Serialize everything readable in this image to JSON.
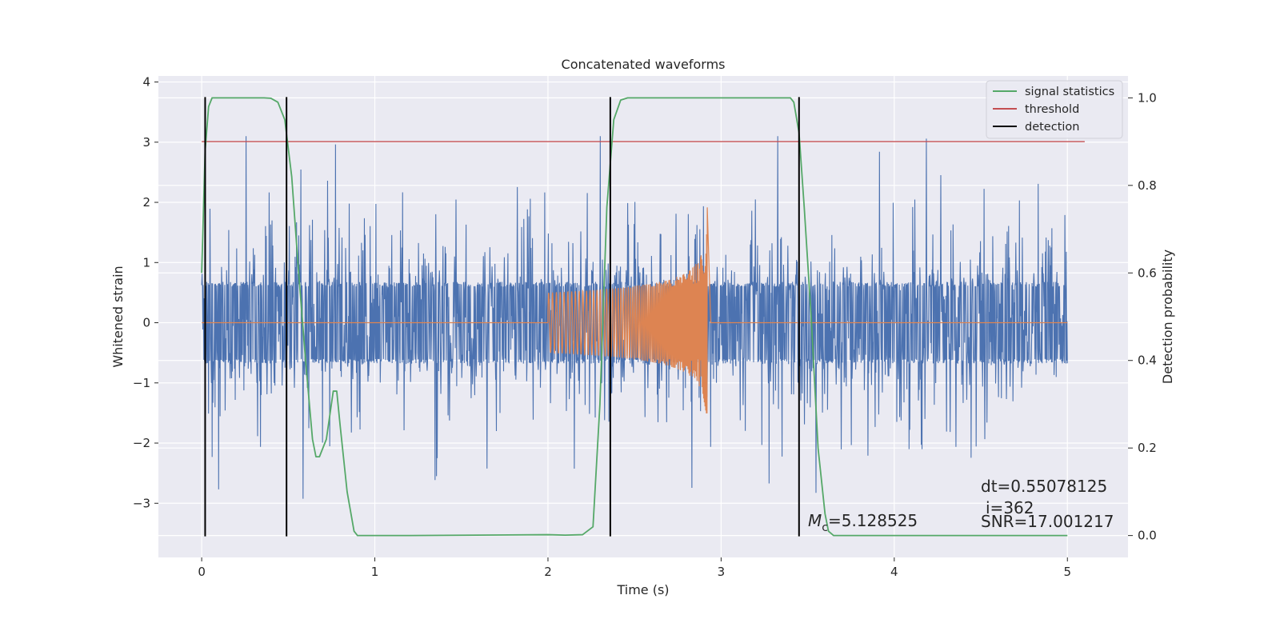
{
  "chart_data": {
    "type": "line",
    "title": "Concatenated waveforms",
    "xlabel": "Time (s)",
    "ylabel": "Whitened strain",
    "y2label": "Detection probability",
    "xlim": [
      -0.25,
      5.35
    ],
    "ylim": [
      -3.9,
      4.1
    ],
    "y2lim": [
      -0.05,
      1.05
    ],
    "xticks": [
      0,
      1,
      2,
      3,
      4,
      5
    ],
    "xtick_labels": [
      "0",
      "1",
      "2",
      "3",
      "4",
      "5"
    ],
    "yticks": [
      -3,
      -2,
      -1,
      0,
      1,
      2,
      3,
      4
    ],
    "ytick_labels": [
      "−3",
      "−2",
      "−1",
      "0",
      "1",
      "2",
      "3",
      "4"
    ],
    "y2ticks": [
      0.0,
      0.2,
      0.4,
      0.6,
      0.8,
      1.0
    ],
    "y2tick_labels": [
      "0.0",
      "0.2",
      "0.4",
      "0.6",
      "0.8",
      "1.0"
    ],
    "grid": true,
    "legend_position": "top-right",
    "colors": {
      "background": "#eaeaf2",
      "grid": "#ffffff",
      "noise": "#4c72b0",
      "template": "#dd8452",
      "signal_statistics": "#55a868",
      "threshold": "#c44e52",
      "detection": "#000000"
    },
    "series": [
      {
        "name": "signal statistics",
        "axis": "right",
        "x": [
          0.0,
          0.02,
          0.04,
          0.06,
          0.1,
          0.2,
          0.36,
          0.4,
          0.44,
          0.48,
          0.52,
          0.56,
          0.6,
          0.64,
          0.66,
          0.68,
          0.72,
          0.76,
          0.78,
          0.8,
          0.84,
          0.88,
          0.9,
          1.2,
          2.0,
          2.1,
          2.2,
          2.26,
          2.3,
          2.34,
          2.38,
          2.42,
          2.46,
          2.5,
          3.4,
          3.42,
          3.45,
          3.48,
          3.52,
          3.56,
          3.6,
          3.62,
          3.65,
          3.7,
          5.0
        ],
        "values": [
          0.6,
          0.88,
          0.98,
          1.0,
          1.0,
          1.0,
          1.0,
          0.999,
          0.99,
          0.95,
          0.82,
          0.6,
          0.4,
          0.22,
          0.18,
          0.18,
          0.22,
          0.33,
          0.33,
          0.25,
          0.1,
          0.01,
          0.0,
          0.0,
          0.002,
          0.001,
          0.002,
          0.02,
          0.3,
          0.75,
          0.95,
          0.995,
          1.0,
          1.0,
          1.0,
          0.99,
          0.92,
          0.75,
          0.5,
          0.2,
          0.05,
          0.01,
          0.0,
          0.0,
          0.0
        ]
      },
      {
        "name": "threshold",
        "axis": "right",
        "x": [
          0.0,
          5.1
        ],
        "values": [
          0.9,
          0.9
        ]
      },
      {
        "name": "detection",
        "axis": "left",
        "x_positions": [
          0.02,
          0.49,
          2.36,
          3.45
        ],
        "ymin": -3.55,
        "ymax": 3.75
      },
      {
        "name": "",
        "axis": "left",
        "kind": "noise",
        "x_range": [
          0.0,
          5.0
        ],
        "envelope": 0.6,
        "peak_range": [
          -3.6,
          3.1
        ]
      },
      {
        "name": "",
        "axis": "left",
        "kind": "chirp",
        "x_range": [
          2.0,
          2.92
        ],
        "amplitude_start": 0.5,
        "amplitude_peak": 2.0
      }
    ],
    "annotations": {
      "mc": "=5.128525",
      "dt": "dt=0.55078125",
      "i": "i=362",
      "snr": "SNR=17.001217"
    }
  }
}
